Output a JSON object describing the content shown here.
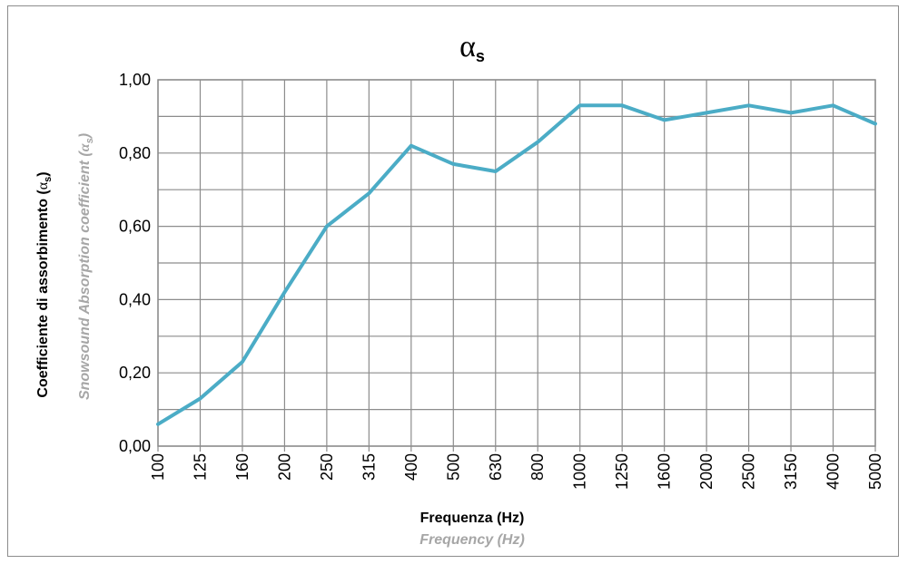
{
  "chart_data": {
    "type": "line",
    "title": {
      "symbol": "α",
      "subscript": "s"
    },
    "xlabel": "Frequenza (Hz)",
    "xlabel_secondary": "Frequency (Hz)",
    "ylabel": {
      "text": "Coefficiente di assorbimento (",
      "symbol": "α",
      "subscript": "s",
      "close": ")"
    },
    "ylabel_secondary": {
      "text": "Snowsound Absorption coefficient (",
      "symbol": "α",
      "subscript": "s",
      "close": ")"
    },
    "categories": [
      "100",
      "125",
      "160",
      "200",
      "250",
      "315",
      "400",
      "500",
      "630",
      "800",
      "1000",
      "1250",
      "1600",
      "2000",
      "2500",
      "3150",
      "4000",
      "5000"
    ],
    "series": [
      {
        "values": [
          0.06,
          0.13,
          0.23,
          0.42,
          0.6,
          0.69,
          0.82,
          0.77,
          0.75,
          0.83,
          0.93,
          0.93,
          0.89,
          0.91,
          0.93,
          0.91,
          0.93,
          0.88
        ],
        "color": "#4bacc6"
      }
    ],
    "yticks": [
      "0,00",
      "0,20",
      "0,40",
      "0,60",
      "0,80",
      "1,00"
    ],
    "ylim": [
      0,
      1
    ],
    "grid": true,
    "grid_color": "#8c8c8c",
    "legend": "none"
  }
}
